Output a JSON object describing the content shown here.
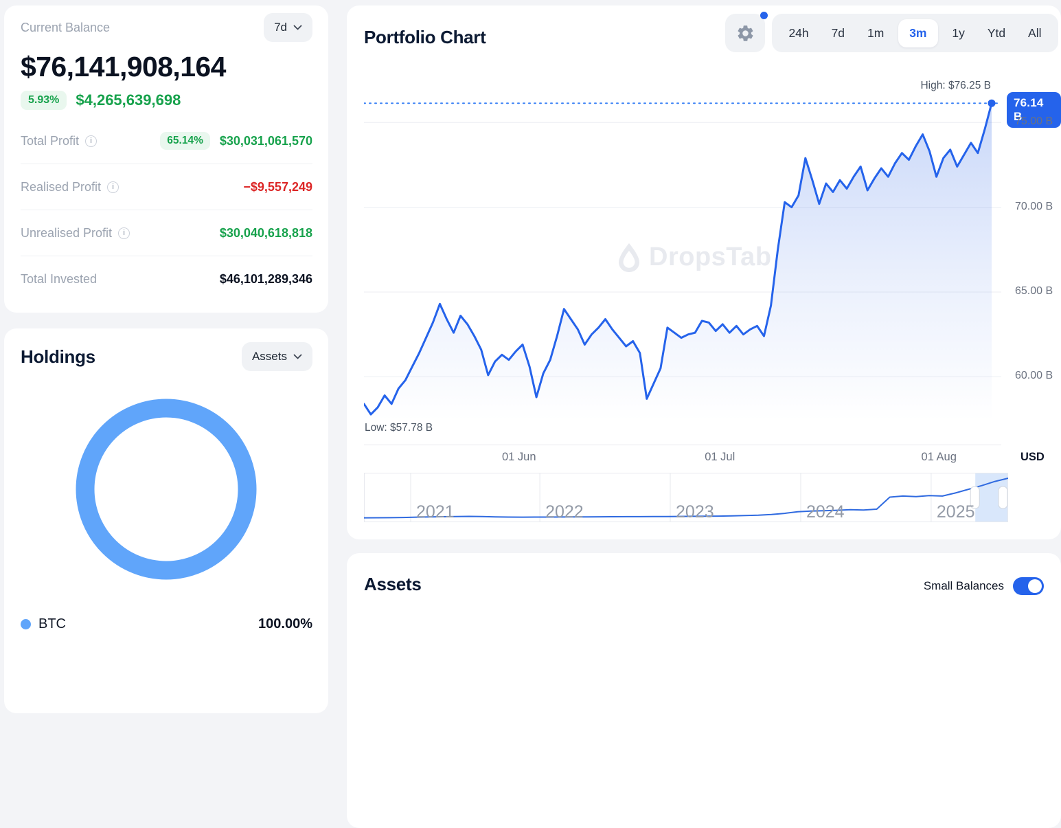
{
  "icons": {
    "info": "i"
  },
  "colors": {
    "accent": "#2563eb",
    "green": "#17a24c",
    "red": "#dc2626",
    "donut": "#60a5fa"
  },
  "balance_card": {
    "label": "Current Balance",
    "period": "7d",
    "balance": "$76,141,908,164",
    "change_percent": "5.93%",
    "change_value": "$4,265,639,698",
    "rows": [
      {
        "label": "Total Profit",
        "info": true,
        "badge": "65.14%",
        "value": "$30,031,061,570",
        "tone": "green"
      },
      {
        "label": "Realised Profit",
        "info": true,
        "value": "−$9,557,249",
        "tone": "red"
      },
      {
        "label": "Unrealised Profit",
        "info": true,
        "value": "$30,040,618,818",
        "tone": "green"
      },
      {
        "label": "Total Invested",
        "info": false,
        "value": "$46,101,289,346",
        "tone": "dark"
      }
    ]
  },
  "holdings_card": {
    "title": "Holdings",
    "selector": "Assets",
    "legend": [
      {
        "name": "BTC",
        "percent": "100.00%",
        "color": "#60a5fa"
      }
    ]
  },
  "chart_card": {
    "title": "Portfolio Chart",
    "ranges": [
      "24h",
      "7d",
      "1m",
      "3m",
      "1y",
      "Ytd",
      "All"
    ],
    "active_range": "3m",
    "high_label": "High: $76.25 B",
    "low_label": "Low: $57.78 B",
    "current_badge": "76.14 B",
    "currency": "USD",
    "watermark": "DropsTab"
  },
  "assets_card": {
    "title": "Assets",
    "toggle_label": "Small Balances",
    "toggle_on": true
  },
  "chart_data": [
    {
      "type": "area",
      "name": "portfolio-value-3m",
      "unit": "billion USD",
      "line_color": "#2563eb",
      "ylim": [
        57.38,
        76.43
      ],
      "y_ticks": [
        {
          "value": 75,
          "label": "75.00 B"
        },
        {
          "value": 70,
          "label": "70.00 B"
        },
        {
          "value": 65,
          "label": "65.00 B"
        },
        {
          "value": 60,
          "label": "60.00 B"
        }
      ],
      "x_ticks": [
        {
          "pos": 0.247,
          "label": "01 Jun"
        },
        {
          "pos": 0.567,
          "label": "01 Jul"
        },
        {
          "pos": 0.916,
          "label": "01 Aug"
        }
      ],
      "high": 76.25,
      "low": 57.78,
      "current": 76.14,
      "values": [
        58.4,
        57.78,
        58.2,
        58.9,
        58.4,
        59.3,
        59.8,
        60.6,
        61.4,
        62.3,
        63.2,
        64.3,
        63.4,
        62.6,
        63.6,
        63.1,
        62.4,
        61.6,
        60.1,
        60.9,
        61.3,
        61.0,
        61.5,
        61.9,
        60.6,
        58.8,
        60.2,
        61.0,
        62.4,
        64.0,
        63.4,
        62.8,
        61.9,
        62.5,
        62.9,
        63.4,
        62.8,
        62.3,
        61.8,
        62.1,
        61.4,
        58.7,
        59.6,
        60.5,
        62.9,
        62.6,
        62.3,
        62.5,
        62.6,
        63.3,
        63.2,
        62.7,
        63.1,
        62.6,
        63.0,
        62.5,
        62.8,
        63.0,
        62.4,
        64.2,
        67.5,
        70.3,
        70.0,
        70.7,
        72.9,
        71.6,
        70.2,
        71.4,
        70.9,
        71.6,
        71.1,
        71.8,
        72.4,
        71.0,
        71.7,
        72.3,
        71.8,
        72.6,
        73.2,
        72.8,
        73.6,
        74.3,
        73.3,
        71.8,
        72.9,
        73.4,
        72.4,
        73.1,
        73.8,
        73.2,
        74.6,
        76.14
      ]
    },
    {
      "type": "pie",
      "name": "holdings-allocation",
      "donut": true,
      "labels": [
        "BTC"
      ],
      "values": [
        100
      ],
      "colors": [
        "#60a5fa"
      ]
    },
    {
      "type": "line",
      "name": "portfolio-history-brush",
      "line_color": "#2f6ae0",
      "years": [
        "2021",
        "2022",
        "2023",
        "2024",
        "2025"
      ],
      "year_grid_pos": [
        0.0725,
        0.273,
        0.4755,
        0.678,
        0.8805
      ],
      "brush": [
        0.949,
        1.0
      ],
      "values": [
        0.5,
        0.6,
        0.8,
        1.2,
        1.8,
        2.2,
        2.6,
        3.0,
        3.3,
        2.9,
        2.4,
        2.0,
        1.8,
        1.9,
        2.0,
        2.1,
        2.2,
        2.3,
        2.5,
        2.6,
        2.7,
        2.8,
        2.9,
        3.0,
        3.2,
        3.4,
        3.6,
        3.8,
        4.2,
        4.8,
        5.5,
        7.0,
        9.0,
        12.0,
        13.5,
        14.0,
        15.0,
        16.0,
        15.5,
        17.0,
        40.0,
        42.0,
        41.0,
        43.0,
        42.0,
        48.0,
        55.0,
        62.0,
        70.0,
        76.0
      ]
    }
  ]
}
